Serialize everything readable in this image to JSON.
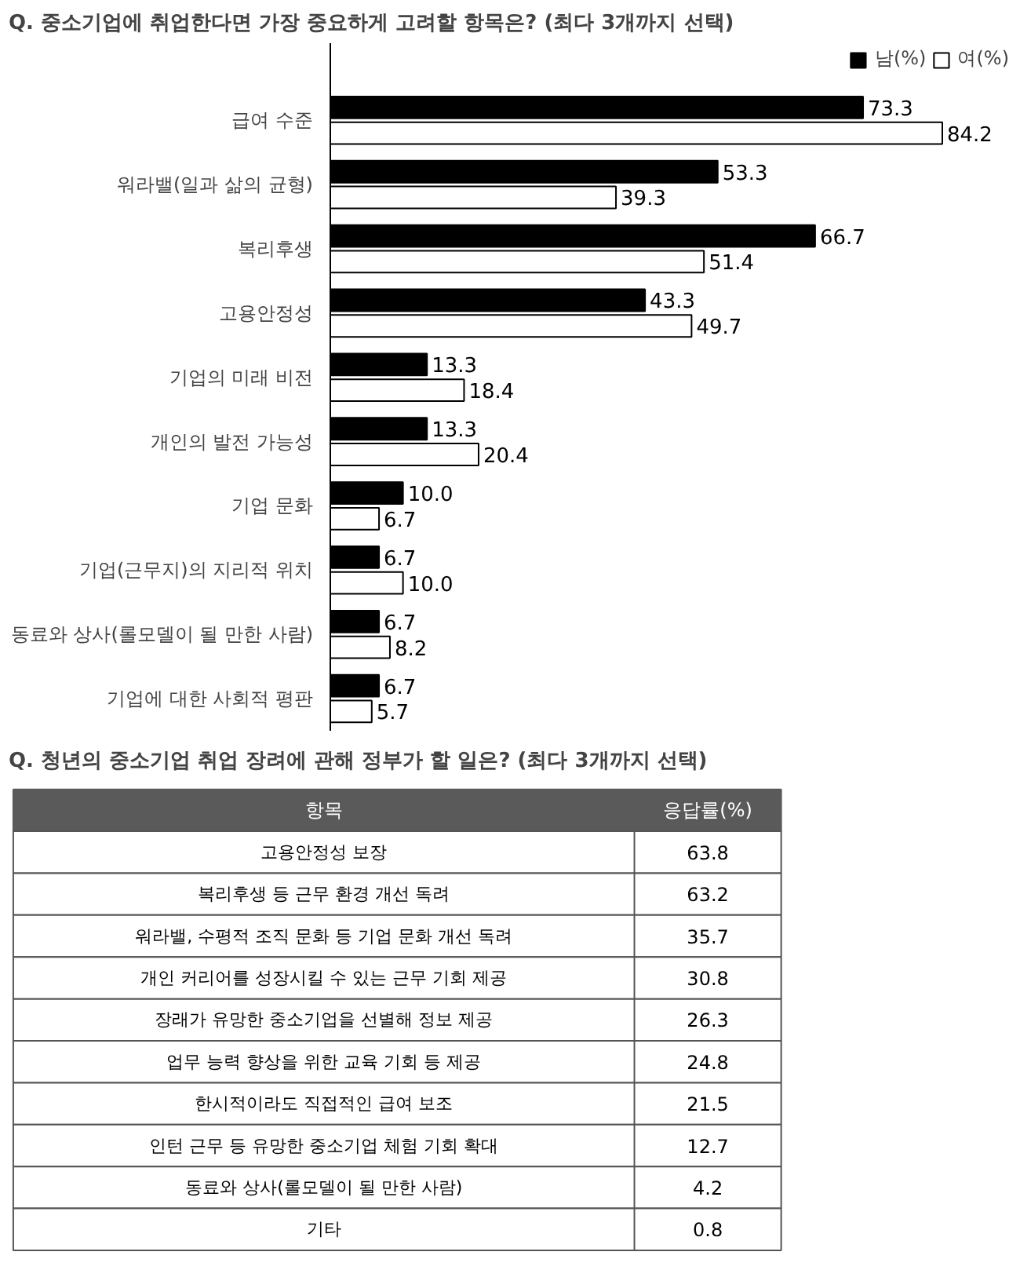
{
  "chart_data": [
    {
      "type": "bar",
      "orientation": "horizontal",
      "title": "Q. 중소기업에 취업한다면 가장 중요하게 고려할 항목은? (최다 3개까지 선택)",
      "categories": [
        "급여 수준",
        "워라밸(일과 삶의 균형)",
        "복리후생",
        "고용안정성",
        "기업의 미래 비전",
        "개인의 발전 가능성",
        "기업 문화",
        "기업(근무지)의 지리적 위치",
        "동료와 상사(롤모델이 될 만한 사람)",
        "기업에 대한 사회적 평판"
      ],
      "series": [
        {
          "name": "남(%)",
          "color": "#000000",
          "values": [
            73.3,
            53.3,
            66.7,
            43.3,
            13.3,
            13.3,
            10.0,
            6.7,
            6.7,
            6.7
          ],
          "value_labels": [
            "73.3",
            "53.3",
            "66.7",
            "43.3",
            "13.3",
            "13.3",
            "10.0",
            "6.7",
            "6.7",
            "6.7"
          ]
        },
        {
          "name": "여(%)",
          "color": "#ffffff",
          "values": [
            84.2,
            39.3,
            51.4,
            49.7,
            18.4,
            20.4,
            6.7,
            10.0,
            8.2,
            5.7
          ],
          "value_labels": [
            "84.2",
            "39.3",
            "51.4",
            "49.7",
            "18.4",
            "20.4",
            "6.7",
            "10.0",
            "8.2",
            "5.7"
          ]
        }
      ],
      "legend": "top right"
    },
    {
      "type": "other",
      "title": "Q. 청년의 중소기업 취업 장려에 관해 정부가 할 일은? (최다 3개까지 선택)",
      "xlabel": "항목",
      "ylabel": "응답률(%)",
      "categories": [
        "고용안정성 보장",
        "복리후생 등 근무 환경 개선 독려",
        "워라밸, 수평적 조직 문화 등 기업 문화 개선 독려",
        "개인 커리어를 성장시킬 수 있는 근무 기회 제공",
        "장래가 유망한 중소기업을 선별해 정보 제공",
        "업무 능력 향상을 위한 교육 기회 등 제공",
        "한시적이라도 직접적인 급여 보조",
        "인턴 근무 등 유망한 중소기업 체험 기회 확대",
        "동료와 상사(롤모델이 될 만한 사람)",
        "기타"
      ],
      "values": [
        63.8,
        63.2,
        35.7,
        30.8,
        26.3,
        24.8,
        21.5,
        12.7,
        4.2,
        0.8
      ],
      "data_labels": true
    }
  ]
}
